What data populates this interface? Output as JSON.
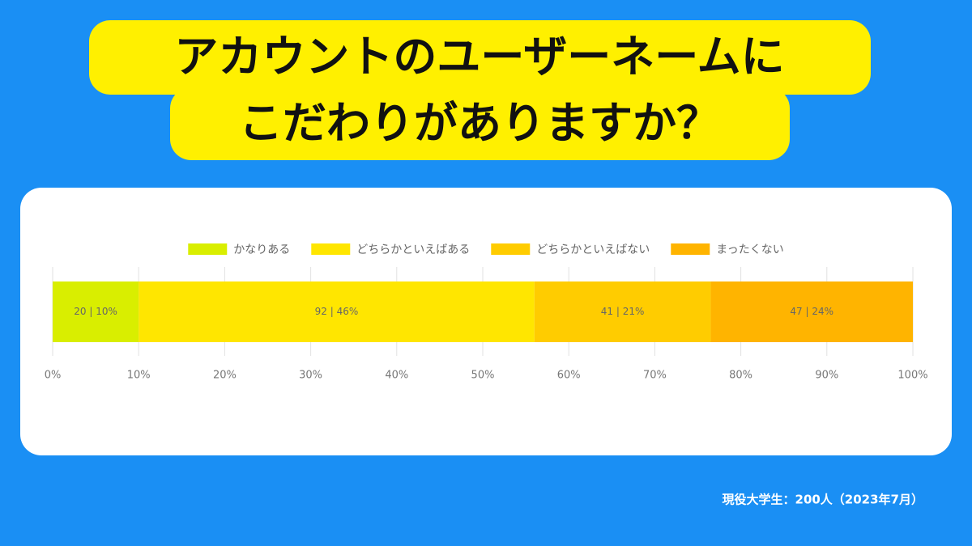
{
  "chart_data": {
    "type": "stacked_barh",
    "title": [
      "アカウントのユーザーネームに",
      "こだわりがありますか？"
    ],
    "note": "現役大学生：200人（2023年7月）",
    "categories": [
      null
    ],
    "series": [
      {
        "name": "かなりある",
        "color": "#d9ee00",
        "values": [
          10
        ],
        "value_labels": [
          "20 | 10%"
        ]
      },
      {
        "name": "どちらかといえばある",
        "color": "#ffe600",
        "values": [
          46
        ],
        "value_labels": [
          "92 | 46%"
        ]
      },
      {
        "name": "どちらかといえばない",
        "color": "#ffcc00",
        "values": [
          20.5
        ],
        "value_labels": [
          "41 | 21%"
        ]
      },
      {
        "name": "まったくない",
        "color": "#ffb400",
        "values": [
          23.5
        ],
        "value_labels": [
          "47 | 24%"
        ]
      }
    ],
    "xlim": [
      0,
      100
    ],
    "xticks": [
      {
        "value": 0,
        "label": "0%"
      },
      {
        "value": 10,
        "label": "10%"
      },
      {
        "value": 20,
        "label": "20%"
      },
      {
        "value": 30,
        "label": "30%"
      },
      {
        "value": 40,
        "label": "40%"
      },
      {
        "value": 50,
        "label": "50%"
      },
      {
        "value": 60,
        "label": "60%"
      },
      {
        "value": 70,
        "label": "70%"
      },
      {
        "value": 80,
        "label": "80%"
      },
      {
        "value": 90,
        "label": "90%"
      },
      {
        "value": 100,
        "label": "100%"
      }
    ],
    "grid": true,
    "legend": "top"
  }
}
